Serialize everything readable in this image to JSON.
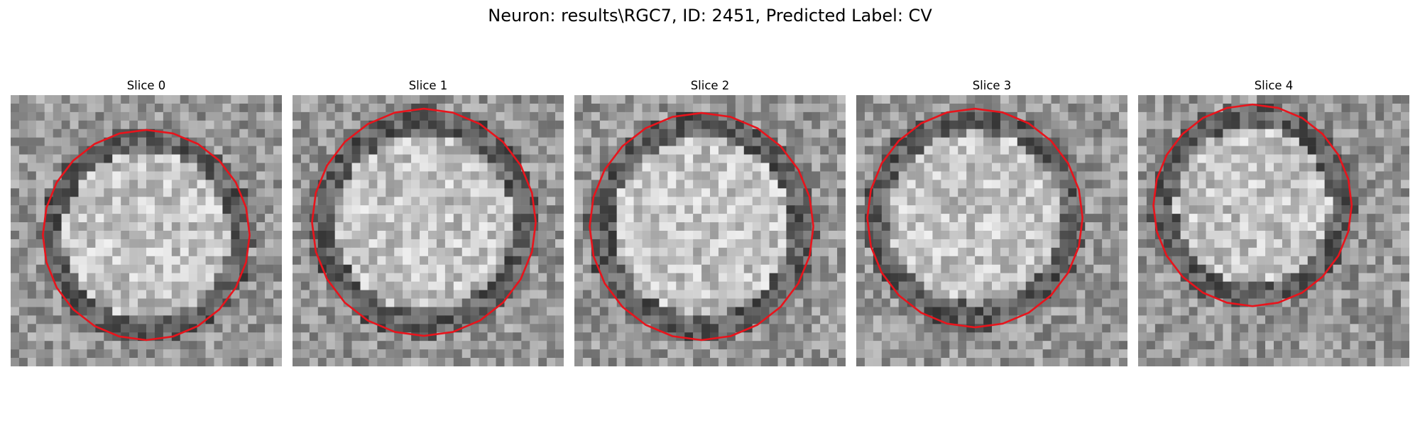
{
  "figure": {
    "title": "Neuron: results\\RGC7, ID: 2451, Predicted Label: CV",
    "contour_color": "#e8141c"
  },
  "panels": [
    {
      "label": "Slice 0"
    },
    {
      "label": "Slice 1"
    },
    {
      "label": "Slice 2"
    },
    {
      "label": "Slice 3"
    },
    {
      "label": "Slice 4"
    }
  ]
}
